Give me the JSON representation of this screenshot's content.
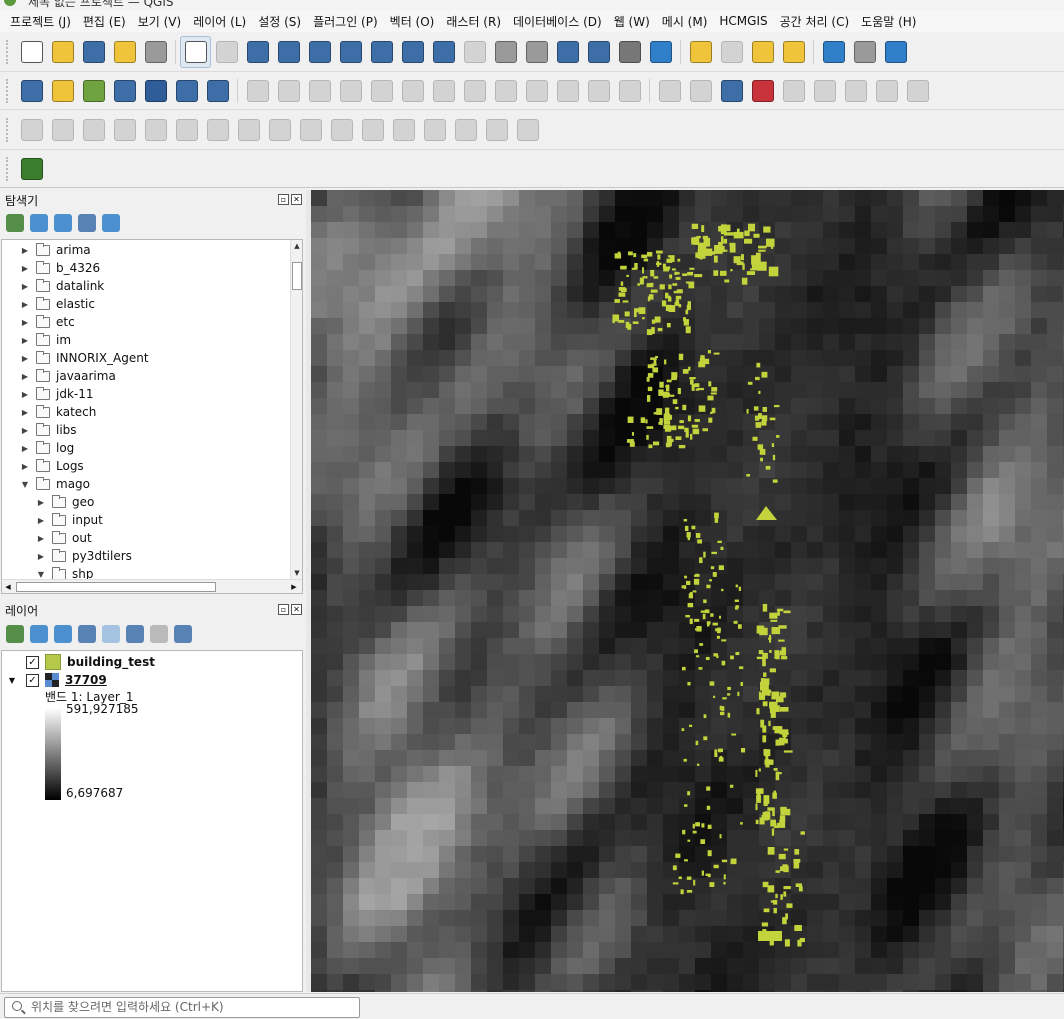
{
  "window": {
    "title": "제목 없는 프로젝트 — QGIS"
  },
  "menubar": {
    "items": [
      "프로젝트 (J)",
      "편집 (E)",
      "보기 (V)",
      "레이어 (L)",
      "설정 (S)",
      "플러그인 (P)",
      "벡터 (O)",
      "래스터 (R)",
      "데이터베이스 (D)",
      "웹 (W)",
      "메시 (M)",
      "HCMGIS",
      "공간 처리 (C)",
      "도움말 (H)"
    ]
  },
  "toolbars": {
    "row1": [
      {
        "icon": "new-project-icon",
        "color": "#ffffff"
      },
      {
        "icon": "open-project-icon",
        "color": "#f0c43a"
      },
      {
        "icon": "save-project-icon",
        "color": "#3d6ea8"
      },
      {
        "icon": "new-print-layout-icon",
        "color": "#f0c43a"
      },
      {
        "icon": "style-manager-icon",
        "color": "#9a9a9a"
      },
      {
        "icon": "pan-map-icon",
        "color": "#ffffff",
        "active": true
      },
      {
        "icon": "pan-to-selection-icon",
        "color": "#b0b0b0"
      },
      {
        "icon": "zoom-in-icon",
        "color": "#3d6ea8"
      },
      {
        "icon": "zoom-out-icon",
        "color": "#3d6ea8"
      },
      {
        "icon": "zoom-full-icon",
        "color": "#3d6ea8"
      },
      {
        "icon": "zoom-to-selection-icon",
        "color": "#3d6ea8"
      },
      {
        "icon": "zoom-to-layer-icon",
        "color": "#3d6ea8"
      },
      {
        "icon": "zoom-native-icon",
        "color": "#3d6ea8"
      },
      {
        "icon": "zoom-last-icon",
        "color": "#3d6ea8"
      },
      {
        "icon": "zoom-next-icon",
        "color": "#b0b0b0"
      },
      {
        "icon": "new-map-view-icon",
        "color": "#9a9a9a"
      },
      {
        "icon": "new-3d-map-icon",
        "color": "#9a9a9a"
      },
      {
        "icon": "new-bookmark-icon",
        "color": "#3d6ea8"
      },
      {
        "icon": "show-bookmarks-icon",
        "color": "#3d6ea8"
      },
      {
        "icon": "temporal-controller-icon",
        "color": "#777777"
      },
      {
        "icon": "refresh-icon",
        "color": "#2f7fc9"
      },
      {
        "icon": "select-features-icon",
        "color": "#f0c43a"
      },
      {
        "icon": "attribute-table-icon",
        "color": "#b0b0b0"
      },
      {
        "icon": "deselect-features-icon",
        "color": "#f0c43a"
      },
      {
        "icon": "select-by-location-icon",
        "color": "#f0c43a"
      },
      {
        "icon": "identify-features-icon",
        "color": "#2f7fc9"
      },
      {
        "icon": "open-attribute-table-icon",
        "color": "#9a9a9a"
      },
      {
        "icon": "settings-gear-icon",
        "color": "#2f7fc9"
      }
    ],
    "row2": [
      {
        "icon": "data-source-manager-icon",
        "color": "#3d6ea8"
      },
      {
        "icon": "new-geopackage-layer-icon",
        "color": "#f0c43a"
      },
      {
        "icon": "new-shapefile-layer-icon",
        "color": "#6fa33f"
      },
      {
        "icon": "new-temporary-layer-icon",
        "color": "#3d6ea8"
      },
      {
        "icon": "new-spatialite-layer-icon",
        "color": "#2f5d9a"
      },
      {
        "icon": "new-virtual-layer-icon",
        "color": "#3d6ea8"
      },
      {
        "icon": "new-mesh-layer-icon",
        "color": "#3d6ea8"
      },
      {
        "icon": "current-edits-icon",
        "color": "#b0b0b0"
      },
      {
        "icon": "toggle-editing-icon",
        "color": "#b0b0b0"
      },
      {
        "icon": "save-edits-icon",
        "color": "#b0b0b0"
      },
      {
        "icon": "digitize-icon",
        "color": "#b0b0b0"
      },
      {
        "icon": "add-polygon-icon",
        "color": "#b0b0b0"
      },
      {
        "icon": "vertex-tool-icon",
        "color": "#b0b0b0"
      },
      {
        "icon": "modify-attributes-icon",
        "color": "#b0b0b0"
      },
      {
        "icon": "delete-selected-icon",
        "color": "#b0b0b0"
      },
      {
        "icon": "cut-features-icon",
        "color": "#b0b0b0"
      },
      {
        "icon": "copy-features-icon",
        "color": "#b0b0b0"
      },
      {
        "icon": "paste-features-icon",
        "color": "#b0b0b0"
      },
      {
        "icon": "undo-icon",
        "color": "#b0b0b0"
      },
      {
        "icon": "redo-icon",
        "color": "#b0b0b0"
      },
      {
        "icon": "label-toolbar-icon",
        "color": "#b0b0b0"
      },
      {
        "icon": "layer-diagram-icon",
        "color": "#b0b0b0"
      },
      {
        "icon": "layer-labeling-icon",
        "color": "#3d6ea8"
      },
      {
        "icon": "highlight-pinned-labels-icon",
        "color": "#c8323a"
      },
      {
        "icon": "pin-labels-icon",
        "color": "#b0b0b0"
      },
      {
        "icon": "show-hide-labels-icon",
        "color": "#b0b0b0"
      },
      {
        "icon": "move-label-icon",
        "color": "#b0b0b0"
      },
      {
        "icon": "rotate-label-icon",
        "color": "#b0b0b0"
      },
      {
        "icon": "change-label-icon",
        "color": "#b0b0b0"
      }
    ],
    "row3": [
      {
        "icon": "snapping-icon",
        "color": "#b0b0b0"
      },
      {
        "icon": "add-ring-icon",
        "color": "#b0b0b0"
      },
      {
        "icon": "add-part-icon",
        "color": "#b0b0b0"
      },
      {
        "icon": "fill-ring-icon",
        "color": "#b0b0b0"
      },
      {
        "icon": "delete-ring-icon",
        "color": "#b0b0b0"
      },
      {
        "icon": "delete-part-icon",
        "color": "#b0b0b0"
      },
      {
        "icon": "reshape-features-icon",
        "color": "#b0b0b0"
      },
      {
        "icon": "offset-curve-icon",
        "color": "#b0b0b0"
      },
      {
        "icon": "split-features-icon",
        "color": "#b0b0b0"
      },
      {
        "icon": "split-parts-icon",
        "color": "#b0b0b0"
      },
      {
        "icon": "merge-features-icon",
        "color": "#b0b0b0"
      },
      {
        "icon": "merge-attributes-icon",
        "color": "#b0b0b0"
      },
      {
        "icon": "rotate-point-symbols-icon",
        "color": "#b0b0b0"
      },
      {
        "icon": "offset-point-symbols-icon",
        "color": "#b0b0b0"
      },
      {
        "icon": "trim-extend-icon",
        "color": "#b0b0b0"
      },
      {
        "icon": "simplify-icon",
        "color": "#b0b0b0"
      },
      {
        "icon": "reverse-line-icon",
        "color": "#b0b0b0"
      }
    ],
    "row4": [
      {
        "icon": "hcmgis-plugin-icon",
        "color": "#3a7d2c"
      }
    ]
  },
  "browser_panel": {
    "title": "탐색기",
    "tools": [
      "add-selected-layers-icon",
      "refresh-icon",
      "filter-icon",
      "collapse-all-icon",
      "properties-info-icon"
    ],
    "items": [
      {
        "label": "arima",
        "indent": 0,
        "expanded": false
      },
      {
        "label": "b_4326",
        "indent": 0,
        "expanded": false
      },
      {
        "label": "datalink",
        "indent": 0,
        "expanded": false
      },
      {
        "label": "elastic",
        "indent": 0,
        "expanded": false
      },
      {
        "label": "etc",
        "indent": 0,
        "expanded": false
      },
      {
        "label": "im",
        "indent": 0,
        "expanded": false
      },
      {
        "label": "INNORIX_Agent",
        "indent": 0,
        "expanded": false
      },
      {
        "label": "javaarima",
        "indent": 0,
        "expanded": false
      },
      {
        "label": "jdk-11",
        "indent": 0,
        "expanded": false
      },
      {
        "label": "katech",
        "indent": 0,
        "expanded": false
      },
      {
        "label": "libs",
        "indent": 0,
        "expanded": false
      },
      {
        "label": "log",
        "indent": 0,
        "expanded": false
      },
      {
        "label": "Logs",
        "indent": 0,
        "expanded": false
      },
      {
        "label": "mago",
        "indent": 0,
        "expanded": true
      },
      {
        "label": "geo",
        "indent": 1,
        "expanded": false
      },
      {
        "label": "input",
        "indent": 1,
        "expanded": false
      },
      {
        "label": "out",
        "indent": 1,
        "expanded": false
      },
      {
        "label": "py3dtilers",
        "indent": 1,
        "expanded": false
      },
      {
        "label": "shp",
        "indent": 1,
        "expanded": true
      }
    ]
  },
  "layers_panel": {
    "title": "레이어",
    "tools": [
      "open-layer-styling-icon",
      "add-group-icon",
      "manage-map-themes-icon",
      "filter-legend-icon",
      "filter-by-expression-icon",
      "expand-all-icon",
      "collapse-all-icon",
      "remove-layer-icon"
    ],
    "layers": [
      {
        "name": "building_test",
        "checked": true,
        "swatch": "#b5c84a"
      },
      {
        "name": "37709",
        "checked": true,
        "expanded": true,
        "band_label": "밴드 1: Layer_1",
        "max": "591,927185",
        "min": "6,697687"
      }
    ]
  },
  "map": {
    "building_color": "#c3d33c",
    "raster_min_color": "#000000",
    "raster_max_color": "#ffffff"
  },
  "statusbar": {
    "locator_placeholder": "위치를 찾으려면 입력하세요 (Ctrl+K)"
  }
}
